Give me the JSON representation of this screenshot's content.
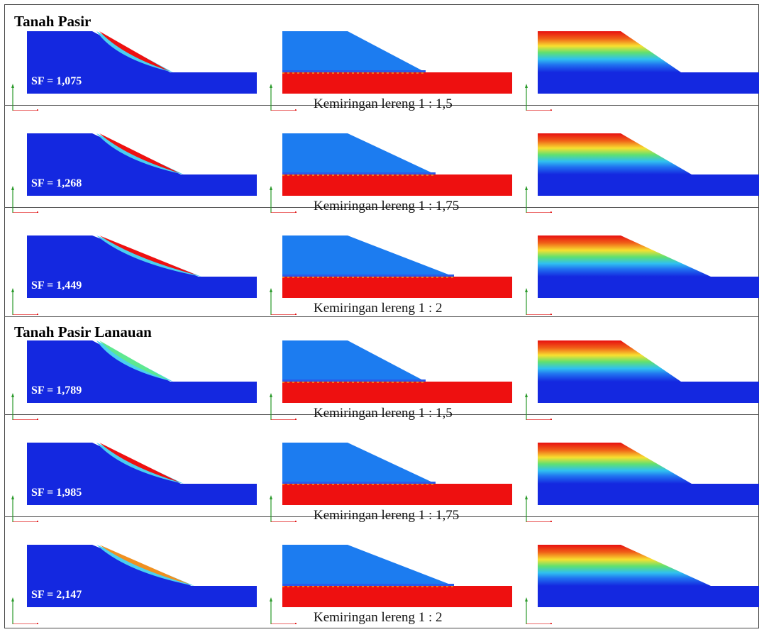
{
  "groups": [
    {
      "title": "Tanah Pasir",
      "rows": [
        {
          "sf": "SF = 1,075",
          "caption": "Kemiringan lereng 1 : 1,5",
          "slip": "red"
        },
        {
          "sf": "SF = 1,268",
          "caption": "Kemiringan lereng 1 : 1,75",
          "slip": "red"
        },
        {
          "sf": "SF = 1,449",
          "caption": "Kemiringan lereng 1 : 2",
          "slip": "red"
        }
      ]
    },
    {
      "title": "Tanah Pasir Lanauan",
      "rows": [
        {
          "sf": "SF = 1,789",
          "caption": "Kemiringan lereng 1 : 1,5",
          "slip": "green"
        },
        {
          "sf": "SF = 1,985",
          "caption": "Kemiringan lereng 1 : 1,75",
          "slip": "red"
        },
        {
          "sf": "SF = 2,147",
          "caption": "Kemiringan lereng 1 : 2",
          "slip": "orange"
        }
      ]
    }
  ],
  "colors": {
    "deep_blue": "#1428e0",
    "light_blue": "#1c7cf0",
    "red": "#ee1010",
    "green": "#5ee890",
    "orange": "#f09020"
  }
}
